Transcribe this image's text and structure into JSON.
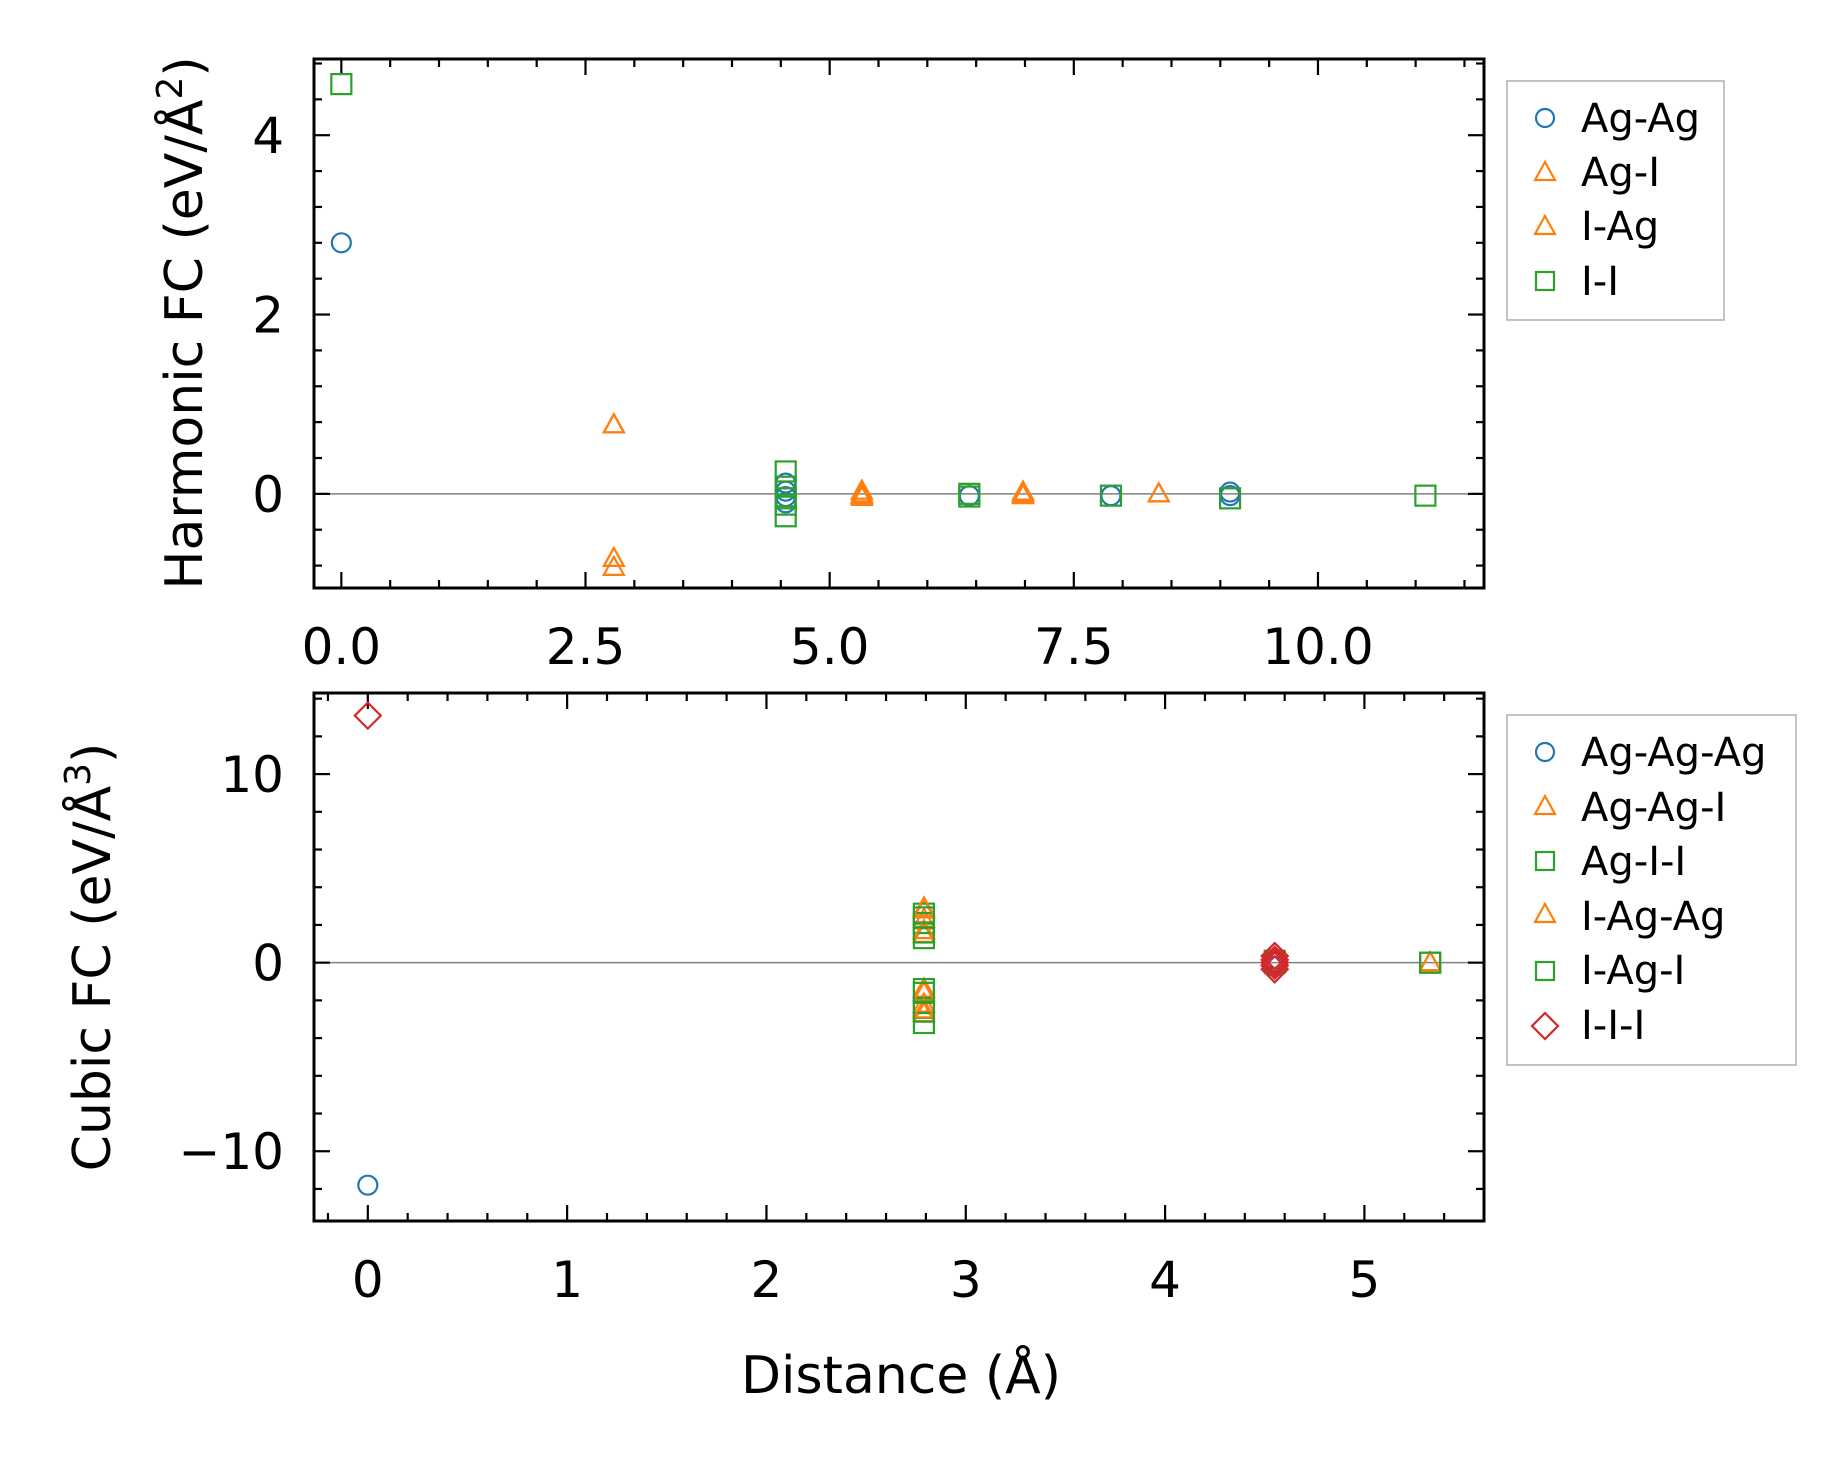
{
  "colors": {
    "c0": "#1f77b4",
    "c1": "#ff7f0e",
    "c2": "#2ca02c",
    "c3": "#d62728",
    "zero_line": "#808080",
    "axis": "#000000"
  },
  "chart_data": [
    {
      "type": "scatter",
      "ylabel_main": "Harmonic FC (eV/Å",
      "ylabel_exp": "2",
      "ylabel_tail": ")",
      "xlabel": "",
      "xlim": [
        -0.28,
        11.7
      ],
      "ylim": [
        -1.05,
        4.85
      ],
      "xticks": [
        0,
        2.5,
        5,
        7.5,
        10
      ],
      "xticklabels": [
        "0.0",
        "2.5",
        "5.0",
        "7.5",
        "10.0"
      ],
      "yticks": [
        0,
        2,
        4
      ],
      "yticklabels": [
        "0",
        "2",
        "4"
      ],
      "legend_position": "outside-right-top",
      "series": [
        {
          "name": "Ag-Ag",
          "marker": "circle",
          "color": "c0",
          "x": [
            0.0,
            4.55,
            4.55,
            4.55,
            4.55,
            6.43,
            7.88,
            9.1,
            9.1
          ],
          "y": [
            2.8,
            0.12,
            0.03,
            -0.03,
            -0.1,
            -0.02,
            -0.02,
            0.02,
            -0.02
          ]
        },
        {
          "name": "Ag-I",
          "marker": "triangle",
          "color": "c1",
          "x": [
            2.79,
            2.79,
            5.33,
            5.33,
            6.98,
            6.98,
            8.37
          ],
          "y": [
            0.77,
            -0.72,
            0.03,
            -0.02,
            0.02,
            -0.02,
            0.0
          ]
        },
        {
          "name": "I-Ag",
          "marker": "triangle",
          "color": "c1",
          "x": [
            2.79,
            2.79,
            5.33,
            5.33,
            6.98,
            8.37
          ],
          "y": [
            0.77,
            -0.82,
            0.0,
            -0.04,
            0.0,
            0.0
          ]
        },
        {
          "name": "I-I",
          "marker": "square",
          "color": "c2",
          "x": [
            0.0,
            4.55,
            4.55,
            4.55,
            4.55,
            4.55,
            6.43,
            6.43,
            7.88,
            9.1,
            11.1
          ],
          "y": [
            4.57,
            0.25,
            0.08,
            -0.05,
            -0.12,
            -0.25,
            0.0,
            -0.03,
            -0.02,
            -0.05,
            -0.02
          ]
        }
      ]
    },
    {
      "type": "scatter",
      "ylabel_main": "Cubic FC (eV/Å",
      "ylabel_exp": "3",
      "ylabel_tail": ")",
      "xlabel": "Distance (Å)",
      "xlim": [
        -0.27,
        5.6
      ],
      "ylim": [
        -13.7,
        14.3
      ],
      "xticks": [
        0,
        1,
        2,
        3,
        4,
        5
      ],
      "xticklabels": [
        "0",
        "1",
        "2",
        "3",
        "4",
        "5"
      ],
      "yticks": [
        -10,
        0,
        10
      ],
      "yticklabels": [
        "−10",
        "0",
        "10"
      ],
      "legend_position": "outside-right-top",
      "series": [
        {
          "name": "Ag-Ag-Ag",
          "marker": "circle",
          "color": "c0",
          "x": [
            0.0,
            4.55,
            4.55
          ],
          "y": [
            -11.8,
            0.2,
            -0.2
          ]
        },
        {
          "name": "Ag-Ag-I",
          "marker": "triangle",
          "color": "c1",
          "x": [
            2.79,
            2.79,
            2.79,
            2.79,
            2.79,
            2.79,
            5.33
          ],
          "y": [
            2.8,
            2.3,
            1.5,
            -1.4,
            -2.2,
            -2.7,
            0.0
          ]
        },
        {
          "name": "Ag-I-I",
          "marker": "square",
          "color": "c2",
          "x": [
            2.79,
            2.79,
            2.79,
            2.79,
            2.79,
            2.79,
            4.55,
            5.33
          ],
          "y": [
            2.6,
            2.1,
            1.3,
            -1.4,
            -2.4,
            -3.2,
            0.0,
            0.0
          ]
        },
        {
          "name": "I-Ag-Ag",
          "marker": "triangle",
          "color": "c1",
          "x": [
            2.79,
            2.79,
            2.79,
            2.79,
            5.33
          ],
          "y": [
            2.9,
            1.7,
            -1.6,
            -2.5,
            0.0
          ]
        },
        {
          "name": "I-Ag-I",
          "marker": "square",
          "color": "c2",
          "x": [
            2.79,
            2.79,
            2.79,
            2.79,
            4.55,
            5.33
          ],
          "y": [
            2.4,
            1.6,
            -1.6,
            -2.6,
            0.1,
            0.0
          ]
        },
        {
          "name": "I-I-I",
          "marker": "diamond",
          "color": "c3",
          "x": [
            0.0,
            4.55,
            4.55,
            4.55,
            4.55,
            4.55
          ],
          "y": [
            13.1,
            0.35,
            0.15,
            0.0,
            -0.15,
            -0.35
          ]
        }
      ]
    }
  ]
}
